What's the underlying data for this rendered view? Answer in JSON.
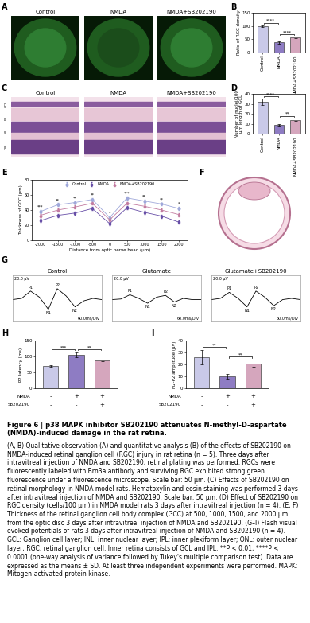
{
  "panel_letters": [
    "A",
    "B",
    "C",
    "D",
    "E",
    "F",
    "G",
    "H",
    "I"
  ],
  "fluorescence_labels": [
    "Control",
    "NMDA",
    "NMDA+SB202190"
  ],
  "he_labels": [
    "Control",
    "NMDA",
    "NMDA+SB202190"
  ],
  "he_layers": [
    "GCL",
    "IPL",
    "INL",
    "ONL"
  ],
  "chart_data": [
    {
      "type": "bar",
      "ylabel": "Ratio of RGC density",
      "categories": [
        "Control",
        "NMDA",
        "NMDA+SB202190"
      ],
      "values": [
        100,
        38,
        56
      ],
      "errors": [
        3,
        4,
        3
      ],
      "colors": [
        "#c9c9e8",
        "#8e7cc3",
        "#d5a6bd"
      ],
      "ylim": [
        0,
        150
      ],
      "yticks": [
        0,
        50,
        100,
        150
      ],
      "comparisons": [
        {
          "from": 0,
          "to": 1,
          "label": "****"
        },
        {
          "from": 1,
          "to": 2,
          "label": "****"
        }
      ]
    },
    {
      "type": "bar",
      "ylabel": "Number of nuclei/100\nμm length of GCL",
      "categories": [
        "Control",
        "NMDA",
        "NMDA+SB202190"
      ],
      "values": [
        32,
        9,
        14
      ],
      "errors": [
        3,
        1,
        1.5
      ],
      "colors": [
        "#c9c9e8",
        "#8e7cc3",
        "#d5a6bd"
      ],
      "ylim": [
        0,
        40
      ],
      "yticks": [
        0,
        10,
        20,
        30,
        40
      ],
      "comparisons": [
        {
          "from": 0,
          "to": 1,
          "label": "****"
        },
        {
          "from": 1,
          "to": 2,
          "label": "**"
        }
      ]
    },
    {
      "type": "line",
      "xlabel": "Distance from optic nerve head (μm)",
      "ylabel": "Thickness of GCC (μm)",
      "x": [
        -2000,
        -1500,
        -1000,
        -500,
        0,
        500,
        1000,
        1500,
        2000
      ],
      "series": [
        {
          "name": "Control",
          "color": "#9fa8da",
          "marker": "circle",
          "values": [
            38,
            47,
            50,
            54,
            30,
            56,
            52,
            48,
            42
          ],
          "errors": [
            2,
            2,
            2,
            2,
            2,
            2,
            2,
            2,
            2
          ]
        },
        {
          "name": "NMDA",
          "color": "#674ea7",
          "marker": "square",
          "values": [
            26,
            33,
            36,
            42,
            22,
            43,
            37,
            32,
            24
          ],
          "errors": [
            2,
            2,
            2,
            2,
            2,
            2,
            2,
            2,
            2
          ]
        },
        {
          "name": "NMDA+SB202190",
          "color": "#c27ba0",
          "marker": "triangle",
          "values": [
            33,
            40,
            44,
            49,
            27,
            49,
            45,
            40,
            34
          ],
          "errors": [
            2,
            2,
            2,
            2,
            2,
            2,
            2,
            2,
            2
          ]
        }
      ],
      "significance": [
        "***",
        "**",
        "**",
        "**",
        "*",
        "***",
        "**",
        "**",
        "*"
      ],
      "xlim": [
        -2250,
        2250
      ],
      "xticks": [
        -2000,
        -1500,
        -1000,
        -500,
        0,
        500,
        1000,
        1500,
        2000
      ],
      "ylim": [
        0,
        80
      ],
      "yticks": [
        0,
        20,
        40,
        60,
        80
      ],
      "legend": "upper center"
    },
    {
      "type": "line",
      "title": "Control",
      "annotations": [
        "20.0 μV",
        "60.0ms/Div"
      ],
      "x": [
        0,
        1,
        2,
        3,
        4,
        5,
        6,
        7,
        8,
        9,
        10
      ],
      "values": [
        0,
        0.1,
        0.7,
        0.2,
        -0.8,
        0.9,
        0.3,
        -0.6,
        -0.1,
        0.1,
        0
      ],
      "peaks": [
        {
          "label": "P1",
          "index": 2
        },
        {
          "label": "N1",
          "index": 4
        },
        {
          "label": "P2",
          "index": 5
        },
        {
          "label": "N2",
          "index": 7
        }
      ],
      "xlim": [
        0,
        10
      ],
      "ylim": [
        -1.8,
        2
      ],
      "xticks": [],
      "yticks": [],
      "tick_labels": false
    },
    {
      "type": "line",
      "title": "Glutamate",
      "annotations": [
        "20.0 μV",
        "60.0ms/Div"
      ],
      "x": [
        0,
        1,
        2,
        3,
        4,
        5,
        6,
        7,
        8,
        9,
        10
      ],
      "values": [
        0,
        0.05,
        0.4,
        0.1,
        -0.3,
        0.2,
        0.35,
        -0.2,
        0.1,
        0,
        0
      ],
      "peaks": [
        {
          "label": "P1",
          "index": 2
        },
        {
          "label": "N1",
          "index": 4
        },
        {
          "label": "P2",
          "index": 6
        },
        {
          "label": "N2",
          "index": 7
        }
      ],
      "xlim": [
        0,
        10
      ],
      "ylim": [
        -1.8,
        2
      ],
      "xticks": [],
      "yticks": [],
      "tick_labels": false
    },
    {
      "type": "line",
      "title": "Glutamate+SB202190",
      "annotations": [
        "20.0 μV",
        "60.0ms/Div"
      ],
      "x": [
        0,
        1,
        2,
        3,
        4,
        5,
        6,
        7,
        8,
        9,
        10
      ],
      "values": [
        0,
        0.1,
        0.6,
        0.1,
        -0.6,
        0.7,
        0.2,
        -0.5,
        0,
        0.1,
        0
      ],
      "peaks": [
        {
          "label": "P1",
          "index": 2
        },
        {
          "label": "N1",
          "index": 4
        },
        {
          "label": "P2",
          "index": 5
        },
        {
          "label": "N2",
          "index": 7
        }
      ],
      "xlim": [
        0,
        10
      ],
      "ylim": [
        -1.8,
        2
      ],
      "xticks": [],
      "yticks": [],
      "tick_labels": false
    },
    {
      "type": "bar",
      "ylabel": "P2 latency (ms)",
      "categories": [
        null,
        null,
        null
      ],
      "values": [
        70,
        105,
        88
      ],
      "errors": [
        2,
        8,
        3
      ],
      "colors": [
        "#c9c9e8",
        "#8e7cc3",
        "#d5a6bd"
      ],
      "ylim": [
        0,
        150
      ],
      "yticks": [
        0,
        50,
        100,
        150
      ],
      "comparisons": [
        {
          "from": 0,
          "to": 1,
          "label": "***"
        },
        {
          "from": 1,
          "to": 2,
          "label": "**"
        }
      ],
      "groups": [
        {
          "name": "NMDA",
          "signs": [
            "-",
            "+",
            "+"
          ]
        },
        {
          "name": "SB202190",
          "signs": [
            "-",
            "-",
            "+"
          ]
        }
      ]
    },
    {
      "type": "bar",
      "ylabel": "N2-P2 amplitude (μV)",
      "categories": [
        null,
        null,
        null
      ],
      "values": [
        26,
        10,
        21
      ],
      "errors": [
        6,
        2,
        3
      ],
      "colors": [
        "#c9c9e8",
        "#8e7cc3",
        "#d5a6bd"
      ],
      "ylim": [
        0,
        40
      ],
      "yticks": [
        0,
        10,
        20,
        30,
        40
      ],
      "comparisons": [
        {
          "from": 0,
          "to": 1,
          "label": "**"
        },
        {
          "from": 1,
          "to": 2,
          "label": "**"
        }
      ],
      "groups": [
        {
          "name": "NMDA",
          "signs": [
            "-",
            "+",
            "+"
          ]
        },
        {
          "name": "SB202190",
          "signs": [
            "-",
            "-",
            "+"
          ]
        }
      ]
    }
  ],
  "caption": {
    "title": "Figure 6 | p38 MAPK inhibitor SB202190 attenuates N-methyl-D-aspartate (NMDA)-induced damage in the rat retina.",
    "body": "(A, B) Qualitative observation (A) and quantitative analysis (B) of the effects of SB202190 on NMDA-induced retinal ganglion cell (RGC) injury in rat retina (n = 5). Three days after intravitreal injection of NMDA and SB202190, retinal plating was performed. RGCs were fluorescently labeled with Brn3a antibody and surviving RGC exhibited strong green fluorescence under a fluorescence microscope. Scale bar: 50 μm. (C) Effects of SB202190 on retinal morphology in NMDA model rats. Hematoxylin and eosin staining was performed 3 days after intravitreal injection of NMDA and SB202190. Scale bar: 50 μm. (D) Effect of SB202190 on RGC density (cells/100 μm) in NMDA model rats 3 days after intravitreal injection (n = 4). (E, F) Thickness of the retinal ganglion cell body complex (GCC) at 500, 1000, 1500, and 2000 μm from the optic disc 3 days after intravitreal injection of NMDA and SB202190. (G–I) Flash visual evoked potentials of rats 3 days after intravitreal injection of NMDA and SB202190 (n = 4). GCL: Ganglion cell layer; INL: inner nuclear layer; IPL: inner plexiform layer; ONL: outer nuclear layer; RGC: retinal ganglion cell. Inner retina consists of GCL and IPL. **P < 0.01, ****P < 0.0001 (one-way analysis of variance followed by Tukey's multiple comparison test). Data are expressed as the means ± SD. At least three independent experiments were performed. MAPK: Mitogen-activated protein kinase."
  }
}
